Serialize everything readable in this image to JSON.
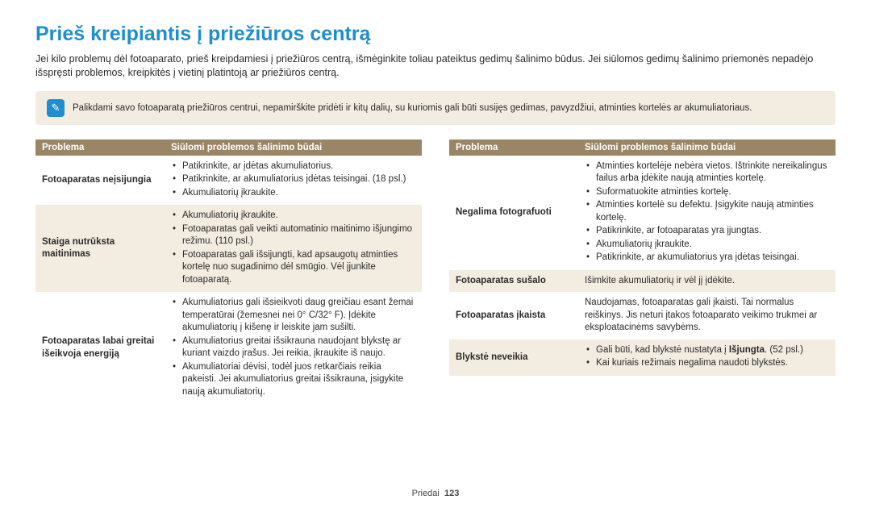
{
  "title_color": "#1d8ecf",
  "title": "Prieš kreipiantis į priežiūros centrą",
  "intro": "Jei kilo problemų dėl fotoaparato, prieš kreipdamiesi į priežiūros centrą, išmėginkite toliau pateiktus gedimų šalinimo būdus. Jei siūlomos gedimų šalinimo priemonės nepadėjo išspręsti problemos, kreipkitės į vietinį platintoją ar priežiūros centrą.",
  "note": "Palikdami savo fotoaparatą priežiūros centrui, nepamirškite pridėti ir kitų dalių, su kuriomis gali būti susijęs gedimas, pavyzdžiui, atminties kortelės ar akumuliatoriaus.",
  "header_bg": "#9a8565",
  "zebra_bg": "#f2ece1",
  "col_problem": "Problema",
  "col_solution": "Siūlomi problemos šalinimo būdai",
  "left_rows": [
    {
      "problem": "Fotoaparatas neįsijungia",
      "items": [
        "Patikrinkite, ar įdėtas akumuliatorius.",
        "Patikrinkite, ar akumuliatorius įdėtas teisingai. (18 psl.)",
        "Akumuliatorių įkraukite."
      ],
      "zebra": false
    },
    {
      "problem": "Staiga nutrūksta maitinimas",
      "items": [
        "Akumuliatorių įkraukite.",
        "Fotoaparatas gali veikti automatinio maitinimo išjungimo režimu. (110 psl.)",
        "Fotoaparatas gali išsijungti, kad apsaugotų atminties kortelę nuo sugadinimo dėl smūgio. Vėl įjunkite fotoaparatą."
      ],
      "zebra": true
    },
    {
      "problem": "Fotoaparatas labai greitai išeikvoja energiją",
      "items": [
        "Akumuliatorius gali išsieikvoti daug greičiau esant žemai temperatūrai (žemesnei nei 0° C/32° F). Įdėkite akumuliatorių į kišenę ir leiskite jam sušilti.",
        "Akumuliatorius greitai išsikrauna naudojant blykstę ar kuriant vaizdo įrašus. Jei reikia, įkraukite iš naujo.",
        "Akumuliatoriai dėvisi, todėl juos retkarčiais reikia pakeisti. Jei akumuliatorius greitai išsikrauna, įsigykite naują akumuliatorių."
      ],
      "zebra": false
    }
  ],
  "right_rows": [
    {
      "problem": "Negalima fotografuoti",
      "items": [
        "Atminties kortelėje nebėra vietos. Ištrinkite nereikalingus failus arba įdėkite naują atminties kortelę.",
        "Suformatuokite atminties kortelę.",
        "Atminties kortelė su defektu. Įsigykite naują atminties kortelę.",
        "Patikrinkite, ar fotoaparatas yra įjungtas.",
        "Akumuliatorių įkraukite.",
        "Patikrinkite, ar akumuliatorius yra įdėtas teisingai."
      ],
      "zebra": false
    },
    {
      "problem": "Fotoaparatas sušalo",
      "plain": "Išimkite akumuliatorių ir vėl jį įdėkite.",
      "zebra": true
    },
    {
      "problem": "Fotoaparatas įkaista",
      "plain": "Naudojamas, fotoaparatas gali įkaisti. Tai normalus reiškinys. Jis neturi įtakos fotoaparato veikimo trukmei ar eksploatacinėms savybėms.",
      "zebra": false
    },
    {
      "problem": "Blykstė neveikia",
      "items_html": [
        "Gali būti, kad blykstė nustatyta į <b>Išjungta</b>. (52 psl.)",
        "Kai kuriais režimais negalima naudoti blykstės."
      ],
      "zebra": true
    }
  ],
  "footer_label": "Priedai",
  "footer_page": "123"
}
